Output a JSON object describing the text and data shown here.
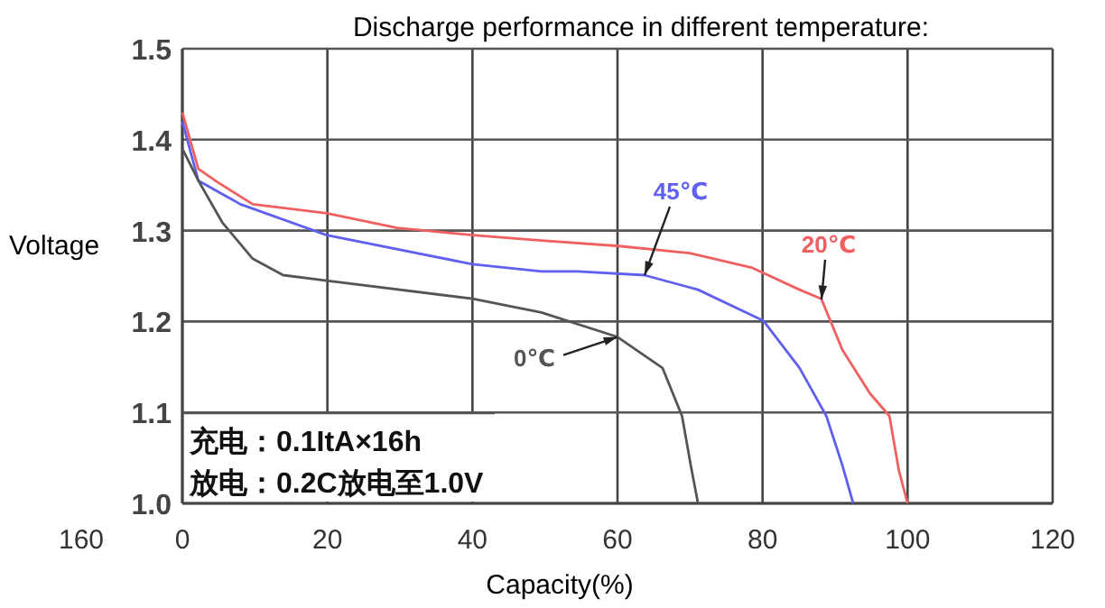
{
  "chart_data": {
    "type": "line",
    "title": "Discharge performance in different temperature:",
    "xlabel": "Capacity(%)",
    "ylabel": "Voltage",
    "xlim": [
      0,
      120
    ],
    "xticks": [
      0,
      20,
      40,
      60,
      80,
      100,
      120
    ],
    "ylim": [
      1.0,
      1.5
    ],
    "yticks": [
      {
        "value": 1.0,
        "label": "1.0"
      },
      1.1,
      1.2,
      1.3,
      1.4,
      1.5
    ],
    "grid": true,
    "marker": "none",
    "line_style": "solid",
    "series": [
      {
        "name": "20℃",
        "color": "#f06060",
        "x": [
          0,
          2.2,
          4.7,
          9.7,
          19.9,
          29.6,
          40,
          49.5,
          60.2,
          70.1,
          78.6,
          85.1,
          88.1,
          91,
          94.8,
          97.5,
          98.8,
          100
        ],
        "values": [
          1.43,
          1.368,
          1.354,
          1.329,
          1.319,
          1.303,
          1.295,
          1.289,
          1.283,
          1.275,
          1.259,
          1.235,
          1.225,
          1.169,
          1.121,
          1.096,
          1.036,
          1.0
        ]
      },
      {
        "name": "45℃",
        "color": "#6060f0",
        "x": [
          0,
          2.2,
          8,
          19.9,
          40,
          49.5,
          54.5,
          63.7,
          71.1,
          80.1,
          85.1,
          88.8,
          91,
          92.5
        ],
        "values": [
          1.42,
          1.355,
          1.329,
          1.295,
          1.263,
          1.255,
          1.255,
          1.251,
          1.235,
          1.201,
          1.149,
          1.096,
          1.042,
          1.0
        ]
      },
      {
        "name": "0℃",
        "color": "#555555",
        "x": [
          0,
          2.2,
          5.5,
          9.7,
          13.9,
          19.9,
          40,
          49.5,
          60,
          66.2,
          68.9,
          70.1,
          71.1
        ],
        "values": [
          1.39,
          1.355,
          1.309,
          1.269,
          1.251,
          1.245,
          1.225,
          1.21,
          1.183,
          1.149,
          1.096,
          1.042,
          1.0
        ]
      }
    ],
    "annotations": [
      "充电：0.1ItA×16h",
      "放电：0.2C放电至1.0V",
      "160"
    ]
  }
}
